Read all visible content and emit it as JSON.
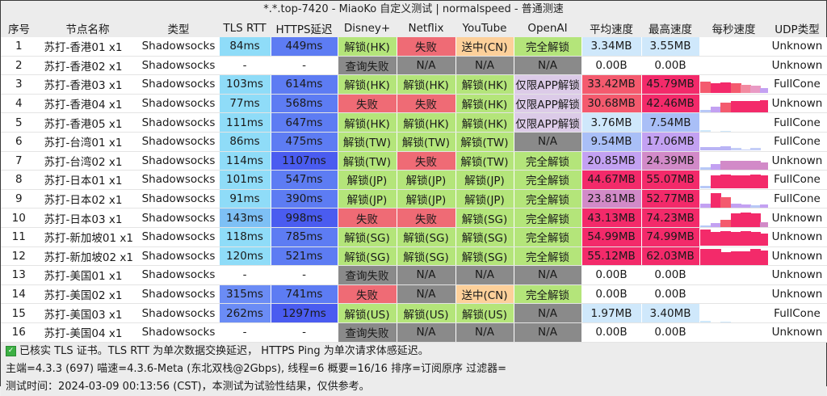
{
  "window": {
    "title": "*.*.top-7420 - MiaoKo 自定义测试 | normalspeed - 普通测速"
  },
  "colors": {
    "tls_rtt": "#8fdcf8",
    "https_fast": "#5d7cf3",
    "https_slow": "#4a5cf0",
    "unlock": "#b4e57a",
    "fail": "#ef6b75",
    "na": "#8a8a8a",
    "cn": "#fdd09a",
    "app_only": "#dccbe8",
    "speed_low": "#cfe8fb",
    "speed_mid_blue": "#a9bff7",
    "speed_purple": "#c3a1f2",
    "speed_pinkish": "#d28ac8",
    "speed_red": "#f45a6e",
    "speed_hot": "#f32a6a"
  },
  "table": {
    "headers": [
      "序号",
      "节点名称",
      "类型",
      "TLS RTT",
      "HTTPS延迟",
      "Disney+",
      "Netflix",
      "YouTube",
      "OpenAI",
      "平均速度",
      "最高速度",
      "每秒速度",
      "UDP类型"
    ],
    "rows": [
      {
        "id": "1",
        "name": "苏打-香港01 x1",
        "type": "Shadowsocks",
        "tls": "84ms",
        "https": "449ms",
        "disney": "解锁(HK)",
        "netflix": "失败",
        "youtube": "送中(CN)",
        "openai": "完全解锁",
        "avg": "3.34MB",
        "max": "3.55MB",
        "udp": "Unknown"
      },
      {
        "id": "2",
        "name": "苏打-香港02 x1",
        "type": "Shadowsocks",
        "tls": "-",
        "https": "-",
        "disney": "查询失败",
        "netflix": "N/A",
        "youtube": "N/A",
        "openai": "N/A",
        "avg": "0.00B",
        "max": "0.00B",
        "udp": "Unknown"
      },
      {
        "id": "3",
        "name": "苏打-香港03 x1",
        "type": "Shadowsocks",
        "tls": "103ms",
        "https": "614ms",
        "disney": "解锁(HK)",
        "netflix": "解锁(HK)",
        "youtube": "解锁(HK)",
        "openai": "仅限APP解锁",
        "avg": "33.42MB",
        "max": "45.79MB",
        "udp": "FullCone"
      },
      {
        "id": "4",
        "name": "苏打-香港04 x1",
        "type": "Shadowsocks",
        "tls": "77ms",
        "https": "568ms",
        "disney": "失败",
        "netflix": "失败",
        "youtube": "解锁(HK)",
        "openai": "仅限APP解锁",
        "avg": "30.68MB",
        "max": "42.46MB",
        "udp": "Unknown"
      },
      {
        "id": "5",
        "name": "苏打-香港05 x1",
        "type": "Shadowsocks",
        "tls": "111ms",
        "https": "647ms",
        "disney": "解锁(HK)",
        "netflix": "解锁(HK)",
        "youtube": "解锁(HK)",
        "openai": "仅限APP解锁",
        "avg": "3.76MB",
        "max": "7.54MB",
        "udp": "FullCone"
      },
      {
        "id": "6",
        "name": "苏打-台湾01 x1",
        "type": "Shadowsocks",
        "tls": "86ms",
        "https": "475ms",
        "disney": "解锁(TW)",
        "netflix": "解锁(TW)",
        "youtube": "解锁(TW)",
        "openai": "N/A",
        "avg": "9.54MB",
        "max": "17.06MB",
        "udp": "FullCone"
      },
      {
        "id": "7",
        "name": "苏打-台湾02 x1",
        "type": "Shadowsocks",
        "tls": "114ms",
        "https": "1107ms",
        "disney": "解锁(TW)",
        "netflix": "失败",
        "youtube": "解锁(TW)",
        "openai": "完全解锁",
        "avg": "20.85MB",
        "max": "24.39MB",
        "udp": "Unknown"
      },
      {
        "id": "8",
        "name": "苏打-日本01 x1",
        "type": "Shadowsocks",
        "tls": "101ms",
        "https": "547ms",
        "disney": "解锁(JP)",
        "netflix": "解锁(JP)",
        "youtube": "解锁(JP)",
        "openai": "完全解锁",
        "avg": "44.67MB",
        "max": "55.07MB",
        "udp": "FullCone"
      },
      {
        "id": "9",
        "name": "苏打-日本02 x1",
        "type": "Shadowsocks",
        "tls": "91ms",
        "https": "390ms",
        "disney": "解锁(JP)",
        "netflix": "解锁(JP)",
        "youtube": "解锁(JP)",
        "openai": "完全解锁",
        "avg": "23.81MB",
        "max": "52.77MB",
        "udp": "FullCone"
      },
      {
        "id": "10",
        "name": "苏打-日本03 x1",
        "type": "Shadowsocks",
        "tls": "143ms",
        "https": "998ms",
        "disney": "失败",
        "netflix": "失败",
        "youtube": "解锁(SG)",
        "openai": "完全解锁",
        "avg": "43.13MB",
        "max": "74.23MB",
        "udp": "Unknown"
      },
      {
        "id": "11",
        "name": "苏打-新加坡01 x1",
        "type": "Shadowsocks",
        "tls": "118ms",
        "https": "785ms",
        "disney": "解锁(SG)",
        "netflix": "解锁(SG)",
        "youtube": "解锁(SG)",
        "openai": "完全解锁",
        "avg": "54.99MB",
        "max": "74.99MB",
        "udp": "Unknown"
      },
      {
        "id": "12",
        "name": "苏打-新加坡02 x1",
        "type": "Shadowsocks",
        "tls": "120ms",
        "https": "521ms",
        "disney": "解锁(SG)",
        "netflix": "解锁(SG)",
        "youtube": "解锁(SG)",
        "openai": "完全解锁",
        "avg": "55.12MB",
        "max": "62.03MB",
        "udp": "Unknown"
      },
      {
        "id": "13",
        "name": "苏打-美国01 x1",
        "type": "Shadowsocks",
        "tls": "-",
        "https": "-",
        "disney": "查询失败",
        "netflix": "N/A",
        "youtube": "N/A",
        "openai": "N/A",
        "avg": "0.00B",
        "max": "0.00B",
        "udp": "Unknown"
      },
      {
        "id": "14",
        "name": "苏打-美国02 x1",
        "type": "Shadowsocks",
        "tls": "315ms",
        "https": "741ms",
        "disney": "失败",
        "netflix": "N/A",
        "youtube": "送中(CN)",
        "openai": "完全解锁",
        "avg": "0.00B",
        "max": "0.00B",
        "udp": "Unknown"
      },
      {
        "id": "15",
        "name": "苏打-美国03 x1",
        "type": "Shadowsocks",
        "tls": "262ms",
        "https": "1297ms",
        "disney": "解锁(US)",
        "netflix": "解锁(US)",
        "youtube": "解锁(US)",
        "openai": "N/A",
        "avg": "1.97MB",
        "max": "3.40MB",
        "udp": "FullCone"
      },
      {
        "id": "16",
        "name": "苏打-美国04 x1",
        "type": "Shadowsocks",
        "tls": "-",
        "https": "-",
        "disney": "查询失败",
        "netflix": "N/A",
        "youtube": "N/A",
        "openai": "N/A",
        "avg": "0.00B",
        "max": "0.00B",
        "udp": "Unknown"
      }
    ]
  },
  "footer": {
    "line1": "已核实 TLS 证书。TLS RTT 为单次数据交换延迟， HTTPS Ping 为单次请求体感延迟。",
    "line2": "主端=4.3.3 (697) 喵速=4.3.6-Meta (东北双栈@2Gbps), 线程=6 概要=16/16 排序=订阅原序 过滤器=",
    "line3": "测试时间：2024-03-09 00:13:56 (CST)，本测试为试验性结果，仅供参考。"
  }
}
